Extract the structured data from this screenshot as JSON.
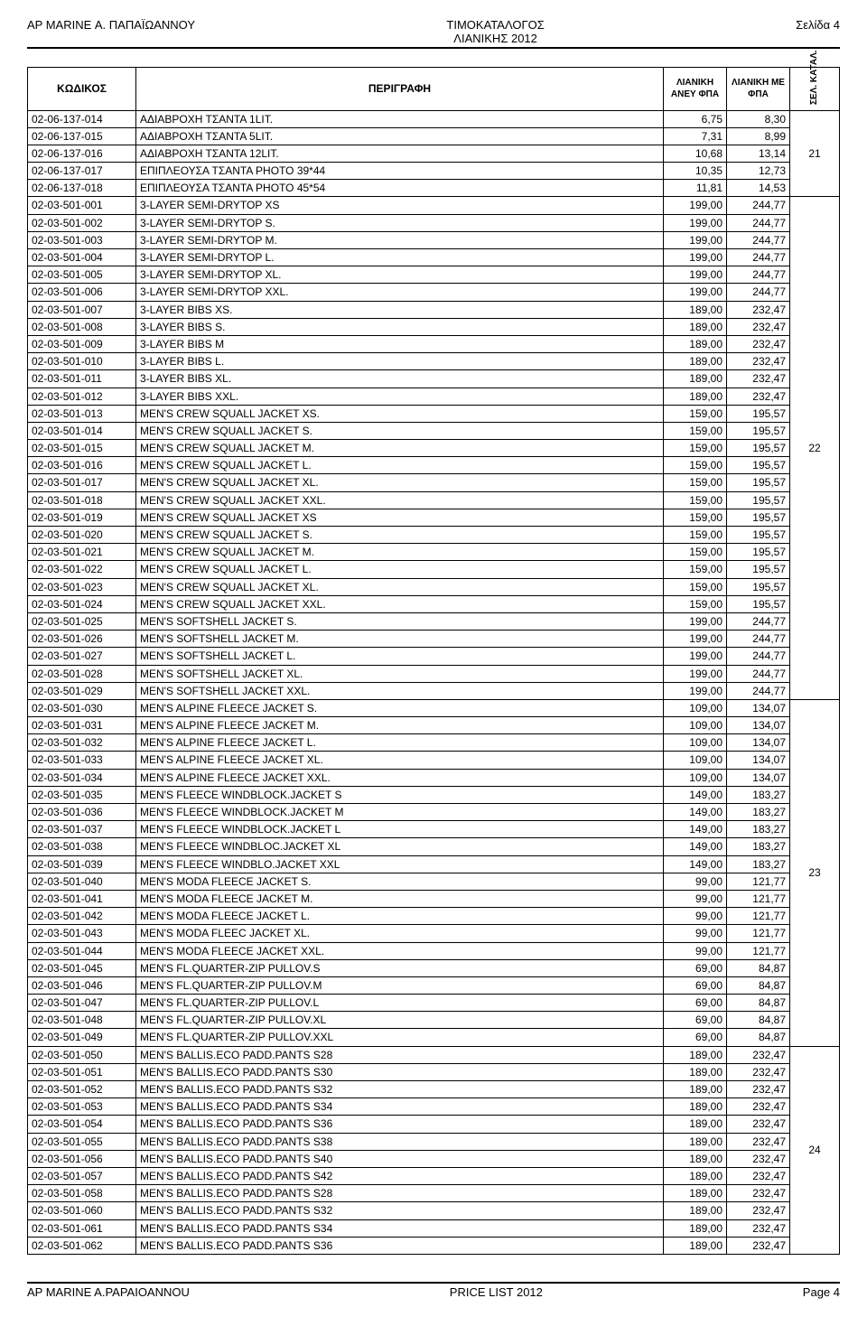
{
  "header": {
    "left": "AP MARINE Α. ΠΑΠΑΪΩΑΝΝΟΥ",
    "center_line1": "ΤΙΜΟΚΑΤΑΛΟΓΟΣ",
    "center_line2": "ΛΙΑΝΙΚΗΣ  2012",
    "right": "Σελίδα 4"
  },
  "footer": {
    "left": "AP MARINE A.PAPAIOANNOU",
    "center": "PRICE LIST 2012",
    "right": "Page 4"
  },
  "columns": {
    "code": "ΚΩΔΙΚΟΣ",
    "desc": "ΠΕΡΙΓΡΑΦΗ",
    "price_no_vat": "ΛΙΑΝΙΚΗ ΑΝΕΥ ΦΠΑ",
    "price_vat": "ΛΙΑΝΙΚΗ ΜΕ ΦΠΑ",
    "cat_page": "ΣΕΛ. ΚΑΤΑΛ."
  },
  "groups": [
    {
      "cat_page": "21",
      "cat_span_index": 3,
      "rows": [
        {
          "code": "02-06-137-014",
          "desc": "ΑΔΙΑΒΡΟΧΗ ΤΣΑΝΤΑ 1LIT.",
          "p1": "6,75",
          "p2": "8,30"
        },
        {
          "code": "02-06-137-015",
          "desc": "ΑΔΙΑΒΡΟΧΗ ΤΣΑΝΤΑ 5LIT.",
          "p1": "7,31",
          "p2": "8,99"
        },
        {
          "code": "02-06-137-016",
          "desc": "ΑΔΙΑΒΡΟΧΗ ΤΣΑΝΤΑ 12LIT.",
          "p1": "10,68",
          "p2": "13,14"
        },
        {
          "code": "02-06-137-017",
          "desc": "ΕΠΙΠΛΕΟΥΣΑ ΤΣΑΝΤΑ PHOTO 39*44",
          "p1": "10,35",
          "p2": "12,73"
        },
        {
          "code": "02-06-137-018",
          "desc": "ΕΠΙΠΛΕΟΥΣΑ ΤΣΑΝΤΑ PHOTO 45*54",
          "p1": "11,81",
          "p2": "14,53"
        }
      ]
    },
    {
      "cat_page": "22",
      "cat_span_index": 14,
      "rows": [
        {
          "code": "02-03-501-001",
          "desc": "3-LAYER SEMI-DRYTOP XS",
          "p1": "199,00",
          "p2": "244,77"
        },
        {
          "code": "02-03-501-002",
          "desc": "3-LAYER SEMI-DRYTOP S.",
          "p1": "199,00",
          "p2": "244,77"
        },
        {
          "code": "02-03-501-003",
          "desc": "3-LAYER SEMI-DRYTOP M.",
          "p1": "199,00",
          "p2": "244,77"
        },
        {
          "code": "02-03-501-004",
          "desc": "3-LAYER SEMI-DRYTOP L.",
          "p1": "199,00",
          "p2": "244,77"
        },
        {
          "code": "02-03-501-005",
          "desc": "3-LAYER SEMI-DRYTOP XL.",
          "p1": "199,00",
          "p2": "244,77"
        },
        {
          "code": "02-03-501-006",
          "desc": "3-LAYER SEMI-DRYTOP XXL.",
          "p1": "199,00",
          "p2": "244,77"
        },
        {
          "code": "02-03-501-007",
          "desc": "3-LAYER BIBS XS.",
          "p1": "189,00",
          "p2": "232,47"
        },
        {
          "code": "02-03-501-008",
          "desc": "3-LAYER BIBS S.",
          "p1": "189,00",
          "p2": "232,47"
        },
        {
          "code": "02-03-501-009",
          "desc": "3-LAYER BIBS M",
          "p1": "189,00",
          "p2": "232,47"
        },
        {
          "code": "02-03-501-010",
          "desc": "3-LAYER BIBS L.",
          "p1": "189,00",
          "p2": "232,47"
        },
        {
          "code": "02-03-501-011",
          "desc": "3-LAYER BIBS XL.",
          "p1": "189,00",
          "p2": "232,47"
        },
        {
          "code": "02-03-501-012",
          "desc": "3-LAYER BIBS XXL.",
          "p1": "189,00",
          "p2": "232,47"
        },
        {
          "code": "02-03-501-013",
          "desc": "MEN'S CREW SQUALL JACKET XS.",
          "p1": "159,00",
          "p2": "195,57"
        },
        {
          "code": "02-03-501-014",
          "desc": "MEN'S CREW SQUALL JACKET S.",
          "p1": "159,00",
          "p2": "195,57"
        },
        {
          "code": "02-03-501-015",
          "desc": "MEN'S CREW SQUALL JACKET M.",
          "p1": "159,00",
          "p2": "195,57"
        },
        {
          "code": "02-03-501-016",
          "desc": "MEN'S CREW SQUALL JACKET L.",
          "p1": "159,00",
          "p2": "195,57"
        },
        {
          "code": "02-03-501-017",
          "desc": "MEN'S CREW SQUALL JACKET XL.",
          "p1": "159,00",
          "p2": "195,57"
        },
        {
          "code": "02-03-501-018",
          "desc": "MEN'S CREW SQUALL JACKET XXL.",
          "p1": "159,00",
          "p2": "195,57"
        },
        {
          "code": "02-03-501-019",
          "desc": "MEN'S CREW SQUALL JACKET XS",
          "p1": "159,00",
          "p2": "195,57"
        },
        {
          "code": "02-03-501-020",
          "desc": "MEN'S CREW SQUALL JACKET S.",
          "p1": "159,00",
          "p2": "195,57"
        },
        {
          "code": "02-03-501-021",
          "desc": "MEN'S CREW SQUALL JACKET M.",
          "p1": "159,00",
          "p2": "195,57"
        },
        {
          "code": "02-03-501-022",
          "desc": "MEN'S CREW SQUALL JACKET L.",
          "p1": "159,00",
          "p2": "195,57"
        },
        {
          "code": "02-03-501-023",
          "desc": "MEN'S CREW SQUALL JACKET XL.",
          "p1": "159,00",
          "p2": "195,57"
        },
        {
          "code": "02-03-501-024",
          "desc": "MEN'S CREW SQUALL JACKET XXL.",
          "p1": "159,00",
          "p2": "195,57"
        },
        {
          "code": "02-03-501-025",
          "desc": "MEN'S SOFTSHELL JACKET S.",
          "p1": "199,00",
          "p2": "244,77"
        },
        {
          "code": "02-03-501-026",
          "desc": "MEN'S SOFTSHELL JACKET M.",
          "p1": "199,00",
          "p2": "244,77"
        },
        {
          "code": "02-03-501-027",
          "desc": "MEN'S SOFTSHELL JACKET L.",
          "p1": "199,00",
          "p2": "244,77"
        },
        {
          "code": "02-03-501-028",
          "desc": "MEN'S SOFTSHELL JACKET XL.",
          "p1": "199,00",
          "p2": "244,77"
        },
        {
          "code": "02-03-501-029",
          "desc": "MEN'S SOFTSHELL JACKET XXL.",
          "p1": "199,00",
          "p2": "244,77"
        }
      ]
    },
    {
      "cat_page": "23",
      "cat_span_index": 9,
      "rows": [
        {
          "code": "02-03-501-030",
          "desc": "MEN'S ALPINE FLEECE JACKET S.",
          "p1": "109,00",
          "p2": "134,07"
        },
        {
          "code": "02-03-501-031",
          "desc": "MEN'S ALPINE FLEECE JACKET M.",
          "p1": "109,00",
          "p2": "134,07"
        },
        {
          "code": "02-03-501-032",
          "desc": "MEN'S ALPINE FLEECE JACKET L.",
          "p1": "109,00",
          "p2": "134,07"
        },
        {
          "code": "02-03-501-033",
          "desc": "MEN'S ALPINE FLEECE JACKET XL.",
          "p1": "109,00",
          "p2": "134,07"
        },
        {
          "code": "02-03-501-034",
          "desc": "MEN'S ALPINE FLEECE JACKET XXL.",
          "p1": "109,00",
          "p2": "134,07"
        },
        {
          "code": "02-03-501-035",
          "desc": "MEN'S FLEECE WINDBLOCK.JACKET S",
          "p1": "149,00",
          "p2": "183,27"
        },
        {
          "code": "02-03-501-036",
          "desc": "MEN'S FLEECE WINDBLOCK.JACKET M",
          "p1": "149,00",
          "p2": "183,27"
        },
        {
          "code": "02-03-501-037",
          "desc": "MEN'S FLEECE WINDBLOCK.JACKET L",
          "p1": "149,00",
          "p2": "183,27"
        },
        {
          "code": "02-03-501-038",
          "desc": "MEN'S FLEECE WINDBLOC.JACKET XL",
          "p1": "149,00",
          "p2": "183,27"
        },
        {
          "code": "02-03-501-039",
          "desc": "MEN'S FLEECE WINDBLO.JACKET XXL",
          "p1": "149,00",
          "p2": "183,27"
        },
        {
          "code": "02-03-501-040",
          "desc": "MEN'S MODA FLEECE JACKET S.",
          "p1": "99,00",
          "p2": "121,77"
        },
        {
          "code": "02-03-501-041",
          "desc": "MEN'S MODA FLEECE JACKET M.",
          "p1": "99,00",
          "p2": "121,77"
        },
        {
          "code": "02-03-501-042",
          "desc": "MEN'S MODA FLEECE JACKET L.",
          "p1": "99,00",
          "p2": "121,77"
        },
        {
          "code": "02-03-501-043",
          "desc": "MEN'S MODA FLEEC JACKET XL.",
          "p1": "99,00",
          "p2": "121,77"
        },
        {
          "code": "02-03-501-044",
          "desc": "MEN'S MODA FLEECE JACKET XXL.",
          "p1": "99,00",
          "p2": "121,77"
        },
        {
          "code": "02-03-501-045",
          "desc": "MEN'S FL.QUARTER-ZIP PULLOV.S",
          "p1": "69,00",
          "p2": "84,87"
        },
        {
          "code": "02-03-501-046",
          "desc": "MEN'S FL.QUARTER-ZIP PULLOV.M",
          "p1": "69,00",
          "p2": "84,87"
        },
        {
          "code": "02-03-501-047",
          "desc": "MEN'S FL.QUARTER-ZIP PULLOV.L",
          "p1": "69,00",
          "p2": "84,87"
        },
        {
          "code": "02-03-501-048",
          "desc": "MEN'S FL.QUARTER-ZIP PULLOV.XL",
          "p1": "69,00",
          "p2": "84,87"
        },
        {
          "code": "02-03-501-049",
          "desc": "MEN'S FL.QUARTER-ZIP PULLOV.XXL",
          "p1": "69,00",
          "p2": "84,87"
        }
      ]
    },
    {
      "cat_page": "24",
      "cat_span_index": 7,
      "rows": [
        {
          "code": "02-03-501-050",
          "desc": "MEN'S BALLIS.ECO PADD.PANTS S28",
          "p1": "189,00",
          "p2": "232,47"
        },
        {
          "code": "02-03-501-051",
          "desc": "MEN'S BALLIS.ECO PADD.PANTS S30",
          "p1": "189,00",
          "p2": "232,47"
        },
        {
          "code": "02-03-501-052",
          "desc": "MEN'S BALLIS.ECO PADD.PANTS S32",
          "p1": "189,00",
          "p2": "232,47"
        },
        {
          "code": "02-03-501-053",
          "desc": "MEN'S BALLIS.ECO PADD.PANTS S34",
          "p1": "189,00",
          "p2": "232,47"
        },
        {
          "code": "02-03-501-054",
          "desc": "MEN'S BALLIS.ECO PADD.PANTS S36",
          "p1": "189,00",
          "p2": "232,47"
        },
        {
          "code": "02-03-501-055",
          "desc": "MEN'S BALLIS.ECO PADD.PANTS S38",
          "p1": "189,00",
          "p2": "232,47"
        },
        {
          "code": "02-03-501-056",
          "desc": "MEN'S BALLIS.ECO PADD.PANTS S40",
          "p1": "189,00",
          "p2": "232,47"
        },
        {
          "code": "02-03-501-057",
          "desc": "MEN'S BALLIS.ECO PADD.PANTS S42",
          "p1": "189,00",
          "p2": "232,47"
        },
        {
          "code": "02-03-501-058",
          "desc": "MEN'S BALLIS.ECO PADD.PANTS S28",
          "p1": "189,00",
          "p2": "232,47"
        },
        {
          "code": "02-03-501-060",
          "desc": "MEN'S BALLIS.ECO PADD.PANTS S32",
          "p1": "189,00",
          "p2": "232,47"
        },
        {
          "code": "02-03-501-061",
          "desc": "MEN'S BALLIS.ECO PADD.PANTS S34",
          "p1": "189,00",
          "p2": "232,47"
        },
        {
          "code": "02-03-501-062",
          "desc": "MEN'S BALLIS.ECO PADD.PANTS S36",
          "p1": "189,00",
          "p2": "232,47"
        }
      ]
    }
  ]
}
